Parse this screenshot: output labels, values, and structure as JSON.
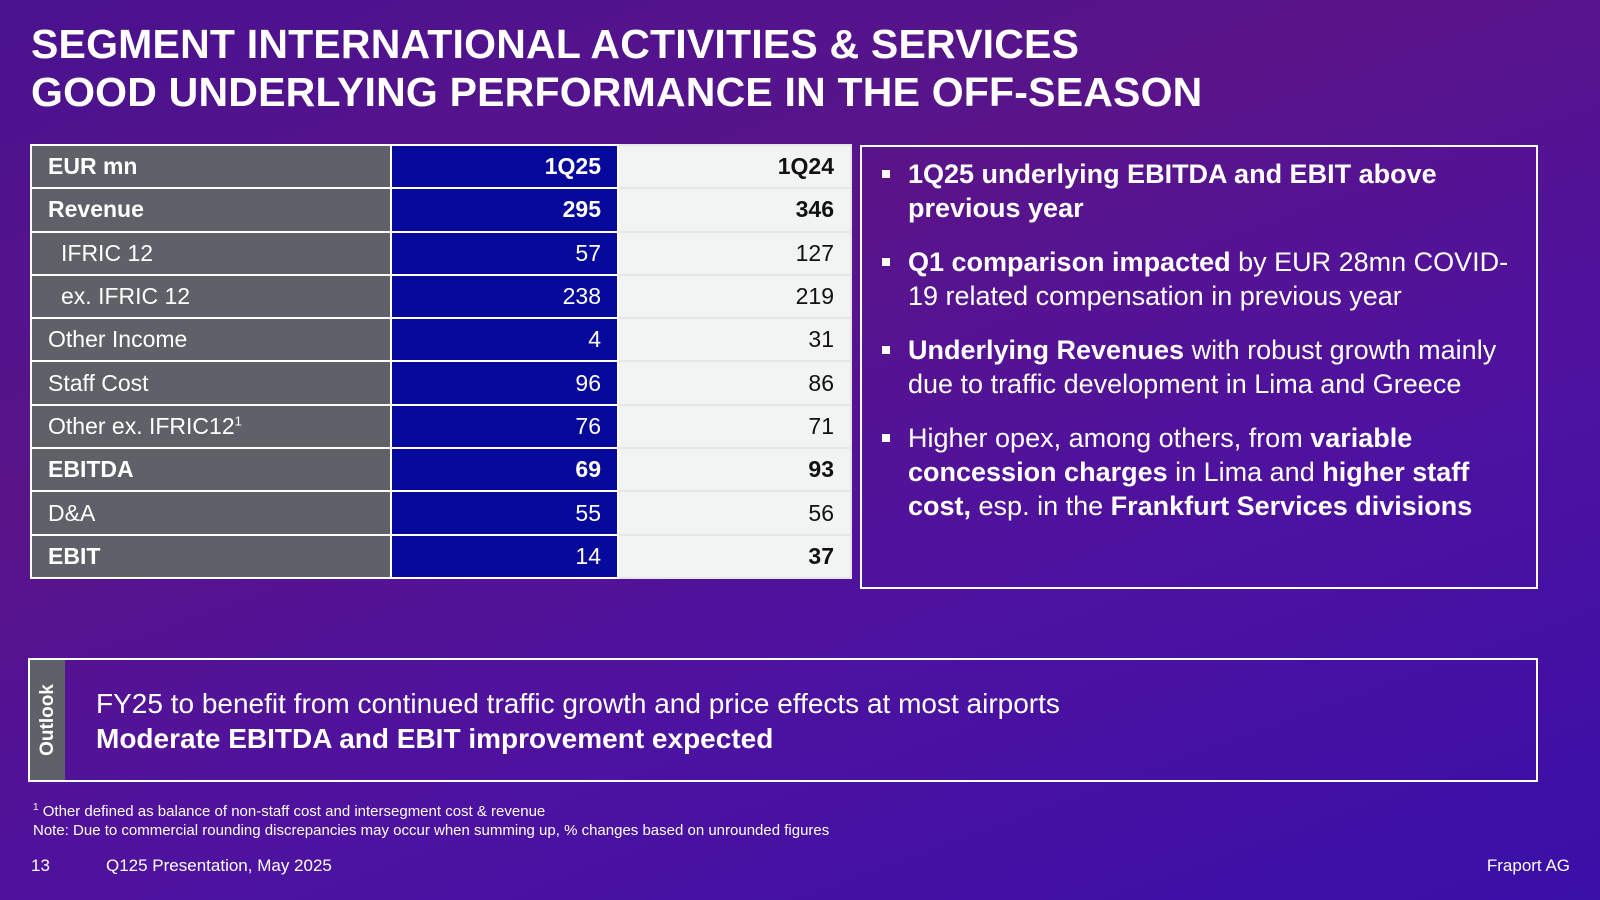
{
  "title": {
    "line1": "SEGMENT INTERNATIONAL ACTIVITIES & SERVICES",
    "line2": "GOOD UNDERLYING PERFORMANCE IN THE OFF-SEASON"
  },
  "table": {
    "header": {
      "label": "EUR mn",
      "col1": "1Q25",
      "col2": "1Q24"
    },
    "rows": [
      {
        "label": "Revenue",
        "sup": "",
        "q25": "295",
        "q24": "346"
      },
      {
        "label": "IFRIC 12",
        "sup": "",
        "q25": "57",
        "q24": "127"
      },
      {
        "label": "ex. IFRIC 12",
        "sup": "",
        "q25": "238",
        "q24": "219"
      },
      {
        "label": "Other Income",
        "sup": "",
        "q25": "4",
        "q24": "31"
      },
      {
        "label": "Staff Cost",
        "sup": "",
        "q25": "96",
        "q24": "86"
      },
      {
        "label": "Other ex. IFRIC12",
        "sup": "1",
        "q25": "76",
        "q24": "71"
      },
      {
        "label": "EBITDA",
        "sup": "",
        "q25": "69",
        "q24": "93"
      },
      {
        "label": "D&A",
        "sup": "",
        "q25": "55",
        "q24": "56"
      },
      {
        "label": "EBIT",
        "sup": "",
        "q25": "14",
        "q24": "37"
      }
    ]
  },
  "bullets": [
    {
      "b1": "1Q25 underlying EBITDA and EBIT above previous year"
    },
    {
      "b1": "Q1 comparison impacted",
      "t1": " by EUR 28mn COVID-19 related compensation in previous year"
    },
    {
      "b1": "Underlying Revenues",
      "t1": " with robust growth mainly due to traffic development in Lima and Greece"
    },
    {
      "t0": "Higher opex, among others, from ",
      "b1": "variable concession charges",
      "t1": " in Lima and ",
      "b2": "higher staff cost,",
      "t2": " esp. in the ",
      "b3": "Frankfurt Services divisions"
    }
  ],
  "outlook": {
    "tab": "Outlook",
    "line1": "FY25 to benefit from continued traffic growth and price effects at most airports",
    "line2": "Moderate EBITDA and EBIT improvement expected"
  },
  "footnote": {
    "sup": "1",
    "line1": " Other defined as balance of non-staff cost and intersegment cost & revenue",
    "line2": "Note: Due to commercial rounding discrepancies may occur when summing up, % changes based on unrounded figures"
  },
  "footer": {
    "page": "13",
    "presentation": "Q125 Presentation, May 2025",
    "company": "Fraport AG"
  }
}
